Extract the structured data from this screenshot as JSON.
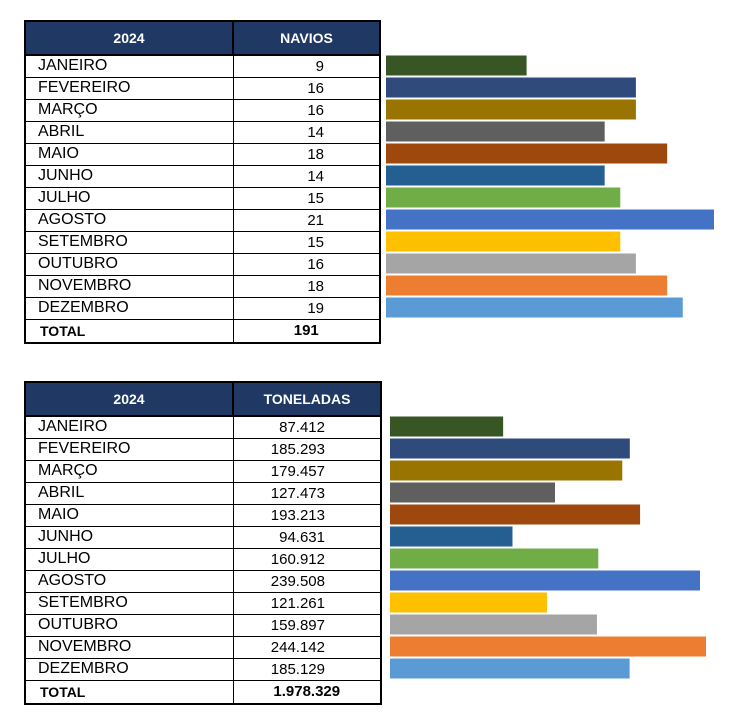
{
  "colors": [
    "#375623",
    "#2f4b7c",
    "#9a7400",
    "#5f5f5f",
    "#9e480e",
    "#255e91",
    "#70ad47",
    "#4472c4",
    "#ffc000",
    "#a5a5a5",
    "#ed7d31",
    "#5b9bd5"
  ],
  "header_color": "#1f3864",
  "chart_data": [
    {
      "type": "bar",
      "orientation": "horizontal",
      "header_year": "2024",
      "header_value": "NAVIOS",
      "categories": [
        "JANEIRO",
        "FEVEREIRO",
        "MARÇO",
        "ABRIL",
        "MAIO",
        "JUNHO",
        "JULHO",
        "AGOSTO",
        "SETEMBRO",
        "OUTUBRO",
        "NOVEMBRO",
        "DEZEMBRO"
      ],
      "values": [
        9,
        16,
        16,
        14,
        18,
        14,
        15,
        21,
        15,
        16,
        18,
        19
      ],
      "labels": [
        "9",
        "16",
        "16",
        "14",
        "18",
        "14",
        "15",
        "21",
        "15",
        "16",
        "18",
        "19"
      ],
      "total_label": "TOTAL",
      "total_value": "191",
      "xlim": [
        0,
        21
      ],
      "grid": false
    },
    {
      "type": "bar",
      "orientation": "horizontal",
      "header_year": "2024",
      "header_value": "TONELADAS",
      "categories": [
        "JANEIRO",
        "FEVEREIRO",
        "MARÇO",
        "ABRIL",
        "MAIO",
        "JUNHO",
        "JULHO",
        "AGOSTO",
        "SETEMBRO",
        "OUTUBRO",
        "NOVEMBRO",
        "DEZEMBRO"
      ],
      "values": [
        87412,
        185293,
        179457,
        127473,
        193213,
        94631,
        160912,
        239508,
        121261,
        159897,
        244142,
        185129
      ],
      "labels": [
        "87.412",
        "185.293",
        "179.457",
        "127.473",
        "193.213",
        "94.631",
        "160.912",
        "239.508",
        "121.261",
        "159.897",
        "244.142",
        "185.129"
      ],
      "total_label": "TOTAL",
      "total_value": "1.978.329",
      "xlim": [
        0,
        244142
      ],
      "grid": false
    }
  ]
}
